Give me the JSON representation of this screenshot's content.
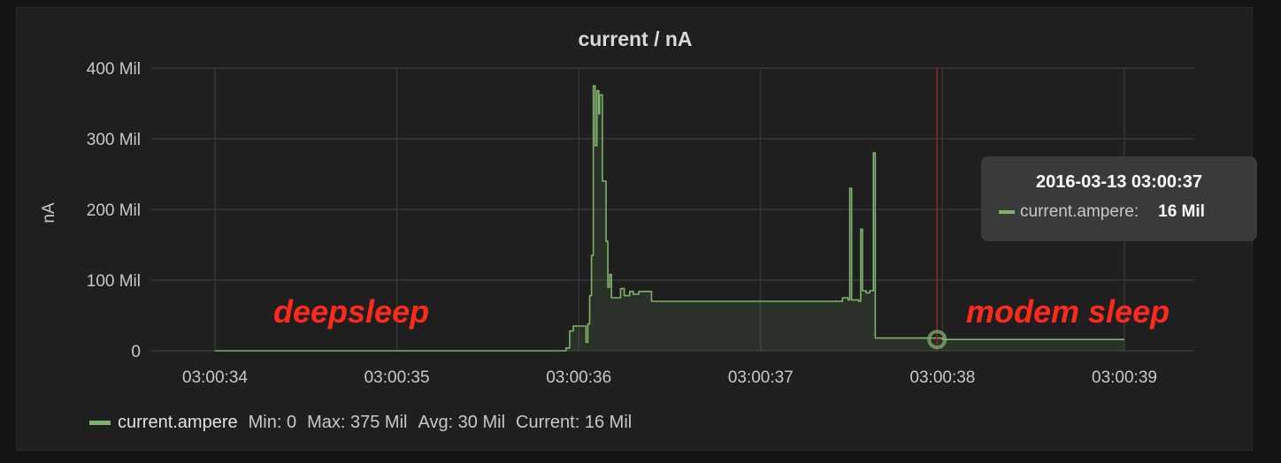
{
  "panel": {
    "title": "current / nA"
  },
  "colors": {
    "series": "#7eb26d",
    "grid": "#404040",
    "cursor": "#a02020",
    "annotation": "#ff2a1a"
  },
  "annotations": {
    "left": "deepsleep",
    "right": "modem sleep"
  },
  "tooltip": {
    "time": "2016-03-13 03:00:37",
    "series_name": "current.ampere:",
    "value": "16 Mil"
  },
  "legend": {
    "name": "current.ampere",
    "min": "Min: 0",
    "max": "Max: 375 Mil",
    "avg": "Avg: 30 Mil",
    "current": "Current: 16 Mil"
  },
  "chart_data": {
    "type": "area",
    "title": "current / nA",
    "ylabel": "nA",
    "xlabel": "",
    "ylim": [
      0,
      400
    ],
    "y_unit_label": "Mil",
    "yticks": [
      "0",
      "100 Mil",
      "200 Mil",
      "300 Mil",
      "400 Mil"
    ],
    "xticks": [
      "03:00:34",
      "03:00:35",
      "03:00:36",
      "03:00:37",
      "03:00:38",
      "03:00:39"
    ],
    "xlim_seconds": [
      34,
      39
    ],
    "cursor_x": 37.97,
    "legend": "bottom-left",
    "grid": true,
    "series": [
      {
        "name": "current.ampere",
        "points": [
          [
            34.0,
            0
          ],
          [
            35.5,
            0
          ],
          [
            35.85,
            0
          ],
          [
            35.93,
            4
          ],
          [
            35.95,
            28
          ],
          [
            35.97,
            35
          ],
          [
            36.02,
            35
          ],
          [
            36.04,
            12
          ],
          [
            36.05,
            38
          ],
          [
            36.06,
            78
          ],
          [
            36.07,
            135
          ],
          [
            36.08,
            375
          ],
          [
            36.09,
            290
          ],
          [
            36.1,
            368
          ],
          [
            36.11,
            335
          ],
          [
            36.115,
            362
          ],
          [
            36.13,
            240
          ],
          [
            36.15,
            155
          ],
          [
            36.16,
            90
          ],
          [
            36.17,
            108
          ],
          [
            36.18,
            75
          ],
          [
            36.22,
            75
          ],
          [
            36.23,
            88
          ],
          [
            36.25,
            78
          ],
          [
            36.28,
            84
          ],
          [
            36.3,
            80
          ],
          [
            36.33,
            84
          ],
          [
            36.38,
            84
          ],
          [
            36.4,
            70
          ],
          [
            37.0,
            70
          ],
          [
            37.4,
            70
          ],
          [
            37.45,
            75
          ],
          [
            37.48,
            72
          ],
          [
            37.49,
            230
          ],
          [
            37.5,
            72
          ],
          [
            37.54,
            70
          ],
          [
            37.55,
            172
          ],
          [
            37.56,
            85
          ],
          [
            37.58,
            82
          ],
          [
            37.6,
            85
          ],
          [
            37.62,
            280
          ],
          [
            37.63,
            18
          ],
          [
            38.0,
            16
          ],
          [
            39.0,
            16
          ]
        ]
      }
    ]
  }
}
